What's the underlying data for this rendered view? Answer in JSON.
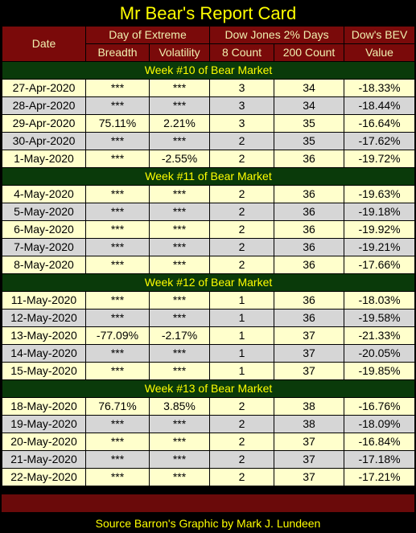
{
  "title": "Mr Bear's Report Card",
  "headers": {
    "date": "Date",
    "day_of_extreme": "Day of Extreme",
    "dow_2pct_days": "Dow Jones 2% Days",
    "dows_bev": "Dow's BEV",
    "breadth": "Breadth",
    "volatility": "Volatility",
    "count8": "8 Count",
    "count200": "200 Count",
    "value": "Value"
  },
  "weeks": [
    {
      "label": "Week #10 of Bear Market",
      "rows": [
        {
          "date": "27-Apr-2020",
          "breadth": "***",
          "volatility": "***",
          "c8": "3",
          "c200": "34",
          "bev": "-18.33%"
        },
        {
          "date": "28-Apr-2020",
          "breadth": "***",
          "volatility": "***",
          "c8": "3",
          "c200": "34",
          "bev": "-18.44%"
        },
        {
          "date": "29-Apr-2020",
          "breadth": "75.11%",
          "volatility": "2.21%",
          "c8": "3",
          "c200": "35",
          "bev": "-16.64%"
        },
        {
          "date": "30-Apr-2020",
          "breadth": "***",
          "volatility": "***",
          "c8": "2",
          "c200": "35",
          "bev": "-17.62%"
        },
        {
          "date": "1-May-2020",
          "breadth": "***",
          "volatility": "-2.55%",
          "c8": "2",
          "c200": "36",
          "bev": "-19.72%"
        }
      ]
    },
    {
      "label": "Week #11 of Bear Market",
      "rows": [
        {
          "date": "4-May-2020",
          "breadth": "***",
          "volatility": "***",
          "c8": "2",
          "c200": "36",
          "bev": "-19.63%"
        },
        {
          "date": "5-May-2020",
          "breadth": "***",
          "volatility": "***",
          "c8": "2",
          "c200": "36",
          "bev": "-19.18%"
        },
        {
          "date": "6-May-2020",
          "breadth": "***",
          "volatility": "***",
          "c8": "2",
          "c200": "36",
          "bev": "-19.92%"
        },
        {
          "date": "7-May-2020",
          "breadth": "***",
          "volatility": "***",
          "c8": "2",
          "c200": "36",
          "bev": "-19.21%"
        },
        {
          "date": "8-May-2020",
          "breadth": "***",
          "volatility": "***",
          "c8": "2",
          "c200": "36",
          "bev": "-17.66%"
        }
      ]
    },
    {
      "label": "Week #12 of Bear Market",
      "rows": [
        {
          "date": "11-May-2020",
          "breadth": "***",
          "volatility": "***",
          "c8": "1",
          "c200": "36",
          "bev": "-18.03%"
        },
        {
          "date": "12-May-2020",
          "breadth": "***",
          "volatility": "***",
          "c8": "1",
          "c200": "36",
          "bev": "-19.58%"
        },
        {
          "date": "13-May-2020",
          "breadth": "-77.09%",
          "volatility": "-2.17%",
          "c8": "1",
          "c200": "37",
          "bev": "-21.33%"
        },
        {
          "date": "14-May-2020",
          "breadth": "***",
          "volatility": "***",
          "c8": "1",
          "c200": "37",
          "bev": "-20.05%"
        },
        {
          "date": "15-May-2020",
          "breadth": "***",
          "volatility": "***",
          "c8": "1",
          "c200": "37",
          "bev": "-19.85%"
        }
      ]
    },
    {
      "label": "Week #13 of Bear Market",
      "rows": [
        {
          "date": "18-May-2020",
          "breadth": "76.71%",
          "volatility": "3.85%",
          "c8": "2",
          "c200": "38",
          "bev": "-16.76%"
        },
        {
          "date": "19-May-2020",
          "breadth": "***",
          "volatility": "***",
          "c8": "2",
          "c200": "38",
          "bev": "-18.09%"
        },
        {
          "date": "20-May-2020",
          "breadth": "***",
          "volatility": "***",
          "c8": "2",
          "c200": "37",
          "bev": "-16.84%"
        },
        {
          "date": "21-May-2020",
          "breadth": "***",
          "volatility": "***",
          "c8": "2",
          "c200": "37",
          "bev": "-17.18%"
        },
        {
          "date": "22-May-2020",
          "breadth": "***",
          "volatility": "***",
          "c8": "2",
          "c200": "37",
          "bev": "-17.21%"
        }
      ]
    }
  ],
  "source": "Source Barron's  Graphic by Mark J. Lundeen",
  "colors": {
    "title_text": "#ffff00",
    "header_bg": "#7a0a0a",
    "week_bg": "#0a3a0a",
    "row_light": "#ffffcc",
    "row_gray": "#d6d6d6"
  }
}
